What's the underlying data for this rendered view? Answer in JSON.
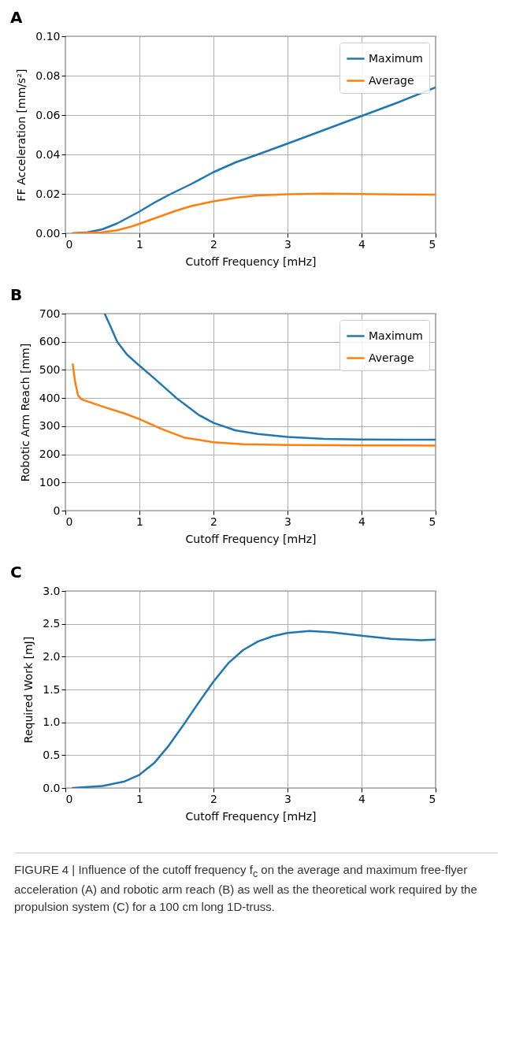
{
  "chart_data": [
    {
      "type": "line",
      "title": "A",
      "xlabel": "Cutoff Frequency [mHz]",
      "ylabel": "FF Acceleration [mm/s²]",
      "xlim": [
        0,
        5
      ],
      "xticks": [
        0,
        1,
        2,
        3,
        4,
        5
      ],
      "ylim": [
        0,
        0.1
      ],
      "yticks": [
        {
          "value": 0,
          "label": "0.00"
        },
        {
          "value": 0.02,
          "label": "0.02"
        },
        {
          "value": 0.04,
          "label": "0.04"
        },
        {
          "value": 0.06,
          "label": "0.06"
        },
        {
          "value": 0.08,
          "label": "0.08"
        },
        {
          "value": 0.1,
          "label": "0.10"
        }
      ],
      "grid": true,
      "legend": "top right",
      "line_style": "solid",
      "marker": "none",
      "series": [
        {
          "name": "Maximum",
          "color": "#1f77b4",
          "x": [
            0.1,
            0.3,
            0.5,
            0.7,
            0.9,
            1.0,
            1.2,
            1.4,
            1.7,
            2.0,
            2.3,
            2.6,
            3.0,
            3.5,
            4.0,
            4.5,
            5.0
          ],
          "values": [
            0,
            0.0005,
            0.002,
            0.005,
            0.009,
            0.011,
            0.0155,
            0.0195,
            0.025,
            0.031,
            0.036,
            0.04,
            0.0455,
            0.0525,
            0.0595,
            0.0665,
            0.074
          ]
        },
        {
          "name": "Average",
          "color": "#ff7f0e",
          "x": [
            0.1,
            0.5,
            0.7,
            0.9,
            1.0,
            1.2,
            1.5,
            1.7,
            2.0,
            2.3,
            2.6,
            3.0,
            3.5,
            4.0,
            4.5,
            5.0
          ],
          "values": [
            0,
            0.0005,
            0.0015,
            0.0035,
            0.0048,
            0.0075,
            0.0115,
            0.0138,
            0.0162,
            0.018,
            0.0192,
            0.0198,
            0.0201,
            0.0199,
            0.0197,
            0.0196
          ]
        }
      ]
    },
    {
      "type": "line",
      "title": "B",
      "xlabel": "Cutoff Frequency [mHz]",
      "ylabel": "Robotic Arm Reach [mm]",
      "xlim": [
        0,
        5
      ],
      "xticks": [
        0,
        1,
        2,
        3,
        4,
        5
      ],
      "ylim": [
        0,
        700
      ],
      "yticks": [
        0,
        100,
        200,
        300,
        400,
        500,
        600,
        700
      ],
      "grid": true,
      "legend": "top right",
      "line_style": "solid",
      "marker": "none",
      "series": [
        {
          "name": "Maximum",
          "color": "#1f77b4",
          "x": [
            0.53,
            0.6,
            0.7,
            0.83,
            1.0,
            1.2,
            1.5,
            1.8,
            2.0,
            2.3,
            2.6,
            3.0,
            3.5,
            4.0,
            4.5,
            5.0
          ],
          "values": [
            700,
            660,
            600,
            555,
            515,
            470,
            400,
            340,
            312,
            285,
            272,
            262,
            255,
            253,
            252,
            252
          ]
        },
        {
          "name": "Average",
          "color": "#ff7f0e",
          "x": [
            0.1,
            0.13,
            0.17,
            0.22,
            0.5,
            0.8,
            1.0,
            1.3,
            1.6,
            2.0,
            2.4,
            3.0,
            4.0,
            5.0
          ],
          "values": [
            520,
            460,
            410,
            395,
            370,
            345,
            325,
            290,
            260,
            243,
            236,
            233,
            232,
            231
          ]
        }
      ]
    },
    {
      "type": "line",
      "title": "C",
      "xlabel": "Cutoff Frequency [mHz]",
      "ylabel": "Required Work [mJ]",
      "xlim": [
        0,
        5
      ],
      "xticks": [
        0,
        1,
        2,
        3,
        4,
        5
      ],
      "ylim": [
        0,
        3
      ],
      "yticks": [
        {
          "value": 0,
          "label": "0.0"
        },
        {
          "value": 0.5,
          "label": "0.5"
        },
        {
          "value": 1,
          "label": "1.0"
        },
        {
          "value": 1.5,
          "label": "1.5"
        },
        {
          "value": 2,
          "label": "2.0"
        },
        {
          "value": 2.5,
          "label": "2.5"
        },
        {
          "value": 3,
          "label": "3.0"
        }
      ],
      "grid": true,
      "line_style": "solid",
      "marker": "none",
      "annotations": [
        "FIGURE 4 | Influence of the cutoff frequency f$_{c}$ on the average and maximum free-flyer acceleration (A) and robotic arm reach (B) as well as the theoretical work required by the propulsion system (C) for a 100 cm long 1D-truss."
      ],
      "series": [
        {
          "color": "#1f77b4",
          "x": [
            0.1,
            0.5,
            0.8,
            1.0,
            1.2,
            1.4,
            1.6,
            1.8,
            2.0,
            2.2,
            2.4,
            2.6,
            2.8,
            3.0,
            3.3,
            3.6,
            4.0,
            4.4,
            4.8,
            5.0
          ],
          "values": [
            0,
            0.03,
            0.1,
            0.2,
            0.38,
            0.65,
            0.97,
            1.3,
            1.62,
            1.9,
            2.1,
            2.23,
            2.31,
            2.36,
            2.39,
            2.37,
            2.32,
            2.27,
            2.25,
            2.26
          ]
        }
      ]
    }
  ]
}
